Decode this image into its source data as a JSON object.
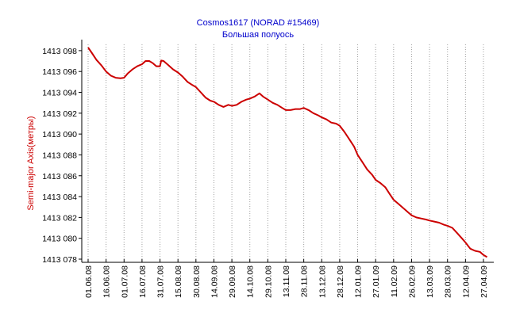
{
  "chart_data": {
    "type": "line",
    "title": "Cosmos1617 (NORAD #15469)",
    "subtitle": "Большая полуось",
    "ylabel": "Semi-major Axis(метры)",
    "xlabel": "",
    "ylim": [
      1413078,
      1413098.6
    ],
    "grid": "vertical dotted",
    "legend": "none",
    "yticks": [
      {
        "value": 1413098,
        "label": "1413 098"
      },
      {
        "value": 1413096,
        "label": "1413 096"
      },
      {
        "value": 1413094,
        "label": "1413 094"
      },
      {
        "value": 1413092,
        "label": "1413 092"
      },
      {
        "value": 1413090,
        "label": "1413 090"
      },
      {
        "value": 1413088,
        "label": "1413 088"
      },
      {
        "value": 1413086,
        "label": "1413 086"
      },
      {
        "value": 1413084,
        "label": "1413 084"
      },
      {
        "value": 1413082,
        "label": "1413 082"
      },
      {
        "value": 1413080,
        "label": "1413 080"
      },
      {
        "value": 1413078,
        "label": "1413 078"
      }
    ],
    "xticks": [
      "01.06.08",
      "16.06.08",
      "01.07.08",
      "16.07.08",
      "31.07.08",
      "15.08.08",
      "30.08.08",
      "14.09.08",
      "29.09.08",
      "14.10.08",
      "29.10.08",
      "13.11.08",
      "28.11.08",
      "13.12.08",
      "28.12.08",
      "12.01.09",
      "27.01.09",
      "11.02.09",
      "26.02.09",
      "13.03.09",
      "28.03.09",
      "12.04.09",
      "27.04.09"
    ],
    "colors": {
      "line": "#cc0000",
      "title": "#0000cc",
      "ylabel": "#cc0000",
      "grid": "#a0a0a0"
    },
    "series": [
      {
        "x": [
          "01.06.08",
          "04.06.08",
          "08.06.08",
          "12.06.08",
          "16.06.08",
          "20.06.08",
          "24.06.08",
          "28.06.08",
          "01.07.08",
          "04.07.08",
          "08.07.08",
          "12.07.08",
          "16.07.08",
          "19.07.08",
          "22.07.08",
          "25.07.08",
          "28.07.08",
          "31.07.08",
          "01.08.08",
          "03.08.08",
          "07.08.08",
          "11.08.08",
          "15.08.08",
          "19.08.08",
          "23.08.08",
          "27.08.08",
          "30.08.08",
          "03.09.08",
          "07.09.08",
          "11.09.08",
          "14.09.08",
          "18.09.08",
          "22.09.08",
          "26.09.08",
          "29.09.08",
          "03.10.08",
          "07.10.08",
          "11.10.08",
          "14.10.08",
          "18.10.08",
          "22.10.08",
          "25.10.08",
          "29.10.08",
          "02.11.08",
          "06.11.08",
          "10.11.08",
          "13.11.08",
          "17.11.08",
          "21.11.08",
          "25.11.08",
          "28.11.08",
          "02.12.08",
          "06.12.08",
          "10.12.08",
          "13.12.08",
          "17.12.08",
          "21.12.08",
          "25.12.08",
          "28.12.08",
          "01.01.09",
          "05.01.09",
          "09.01.09",
          "12.01.09",
          "16.01.09",
          "20.01.09",
          "24.01.09",
          "27.01.09",
          "31.01.09",
          "04.02.09",
          "08.02.09",
          "11.02.09",
          "15.02.09",
          "19.02.09",
          "23.02.09",
          "26.02.09",
          "02.03.09",
          "06.03.09",
          "10.03.09",
          "13.03.09",
          "17.03.09",
          "21.03.09",
          "25.03.09",
          "28.03.09",
          "01.04.09",
          "05.04.09",
          "09.04.09",
          "12.04.09",
          "16.04.09",
          "20.04.09",
          "24.04.09",
          "27.04.09",
          "30.04.09"
        ],
        "values": [
          1413098.3,
          1413097.8,
          1413097.1,
          1413096.6,
          1413096.0,
          1413095.6,
          1413095.4,
          1413095.35,
          1413095.4,
          1413095.8,
          1413096.2,
          1413096.5,
          1413096.7,
          1413097.0,
          1413097.0,
          1413096.8,
          1413096.5,
          1413096.5,
          1413097.05,
          1413097.0,
          1413096.6,
          1413096.2,
          1413095.9,
          1413095.5,
          1413095.0,
          1413094.7,
          1413094.5,
          1413094.0,
          1413093.5,
          1413093.2,
          1413093.1,
          1413092.8,
          1413092.6,
          1413092.8,
          1413092.7,
          1413092.8,
          1413093.1,
          1413093.3,
          1413093.4,
          1413093.6,
          1413093.9,
          1413093.6,
          1413093.3,
          1413093.0,
          1413092.8,
          1413092.5,
          1413092.3,
          1413092.3,
          1413092.4,
          1413092.4,
          1413092.5,
          1413092.3,
          1413092.0,
          1413091.8,
          1413091.6,
          1413091.4,
          1413091.1,
          1413091.0,
          1413090.8,
          1413090.2,
          1413089.5,
          1413088.8,
          1413088.0,
          1413087.3,
          1413086.6,
          1413086.1,
          1413085.6,
          1413085.3,
          1413084.9,
          1413084.2,
          1413083.7,
          1413083.3,
          1413082.9,
          1413082.5,
          1413082.2,
          1413082.0,
          1413081.9,
          1413081.8,
          1413081.7,
          1413081.6,
          1413081.5,
          1413081.3,
          1413081.2,
          1413081.0,
          1413080.5,
          1413080.0,
          1413079.6,
          1413079.0,
          1413078.8,
          1413078.7,
          1413078.4,
          1413078.2
        ]
      }
    ]
  }
}
